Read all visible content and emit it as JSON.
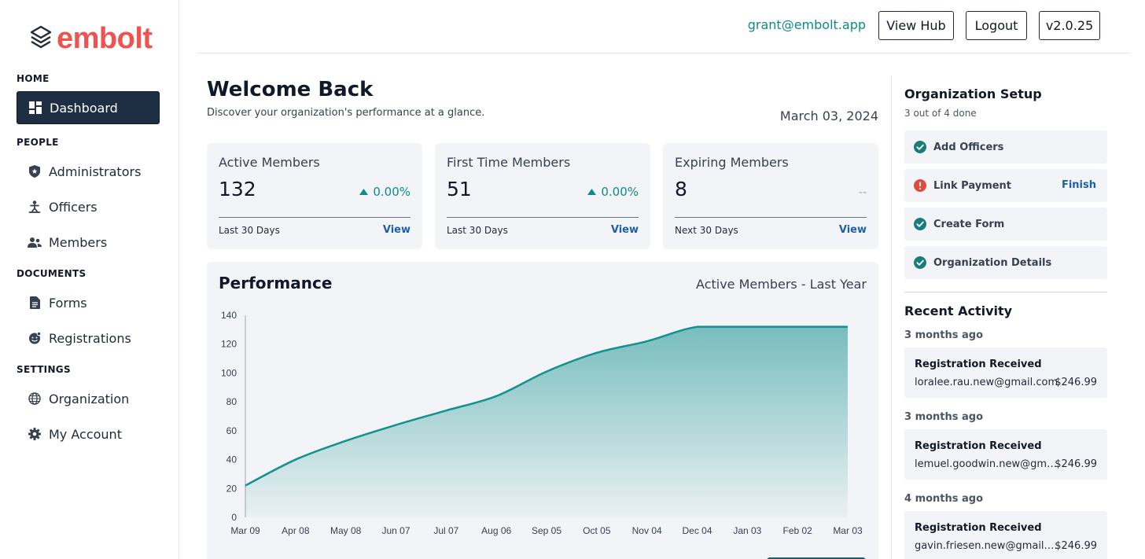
{
  "brand": {
    "name": "embolt",
    "color": "#ef5350"
  },
  "header": {
    "user_email": "grant@embolt.app",
    "view_hub_label": "View Hub",
    "logout_label": "Logout",
    "version_label": "v2.0.25"
  },
  "sidebar": {
    "sections": [
      {
        "title": "HOME",
        "items": [
          {
            "label": "Dashboard",
            "icon": "dashboard-icon",
            "active": true
          }
        ]
      },
      {
        "title": "PEOPLE",
        "items": [
          {
            "label": "Administrators",
            "icon": "shield-icon"
          },
          {
            "label": "Officers",
            "icon": "officer-icon"
          },
          {
            "label": "Members",
            "icon": "members-icon"
          }
        ]
      },
      {
        "title": "DOCUMENTS",
        "items": [
          {
            "label": "Forms",
            "icon": "document-icon"
          },
          {
            "label": "Registrations",
            "icon": "registration-icon"
          }
        ]
      },
      {
        "title": "SETTINGS",
        "items": [
          {
            "label": "Organization",
            "icon": "globe-icon"
          },
          {
            "label": "My Account",
            "icon": "gear-icon"
          }
        ]
      }
    ]
  },
  "main": {
    "welcome": "Welcome Back",
    "subtitle": "Discover your organization's performance at a glance.",
    "date": "March 03, 2024",
    "stats": [
      {
        "title": "Active Members",
        "value": "132",
        "change": "0.00%",
        "period": "Last 30 Days",
        "link": "View"
      },
      {
        "title": "First Time Members",
        "value": "51",
        "change": "0.00%",
        "period": "Last 30 Days",
        "link": "View"
      },
      {
        "title": "Expiring Members",
        "value": "8",
        "change": "--",
        "period": "Next 30 Days",
        "link": "View"
      }
    ],
    "performance": {
      "title": "Performance",
      "subtitle": "Active Members - Last Year"
    }
  },
  "chart_data": {
    "type": "area",
    "title": "Performance",
    "series_name": "Active Members - Last Year",
    "categories": [
      "Mar 09",
      "Apr 08",
      "May 08",
      "Jun 07",
      "Jul 07",
      "Aug 06",
      "Sep 05",
      "Oct 05",
      "Nov 04",
      "Dec 04",
      "Jan 03",
      "Feb 02",
      "Mar 03"
    ],
    "values": [
      22,
      40,
      53,
      64,
      74,
      84,
      101,
      114,
      122,
      132,
      132,
      132,
      132
    ],
    "ylim": [
      0,
      140
    ],
    "yticks": [
      0,
      20,
      40,
      60,
      80,
      100,
      120,
      140
    ],
    "color": "#13918f"
  },
  "right_panel": {
    "setup": {
      "title": "Organization Setup",
      "progress": "3 out of 4 done",
      "items": [
        {
          "label": "Add Officers",
          "status": "done"
        },
        {
          "label": "Link Payment",
          "status": "pending",
          "action": "Finish"
        },
        {
          "label": "Create Form",
          "status": "done"
        },
        {
          "label": "Organization Details",
          "status": "done"
        }
      ]
    },
    "activity": {
      "title": "Recent Activity",
      "items": [
        {
          "time": "3 months ago",
          "title": "Registration Received",
          "email": "loralee.rau.new@gmail.com",
          "amount": "$246.99"
        },
        {
          "time": "3 months ago",
          "title": "Registration Received",
          "email": "lemuel.goodwin.new@gmail.com",
          "amount": "$246.99"
        },
        {
          "time": "4 months ago",
          "title": "Registration Received",
          "email": "gavin.friesen.new@gmail.com",
          "amount": "$246.99"
        }
      ]
    }
  },
  "colors": {
    "accent": "#0e8a8a",
    "link": "#1f5fa8",
    "nav_active": "#1e2f44",
    "success": "#1c7c7a",
    "warning": "#e24b3b"
  }
}
